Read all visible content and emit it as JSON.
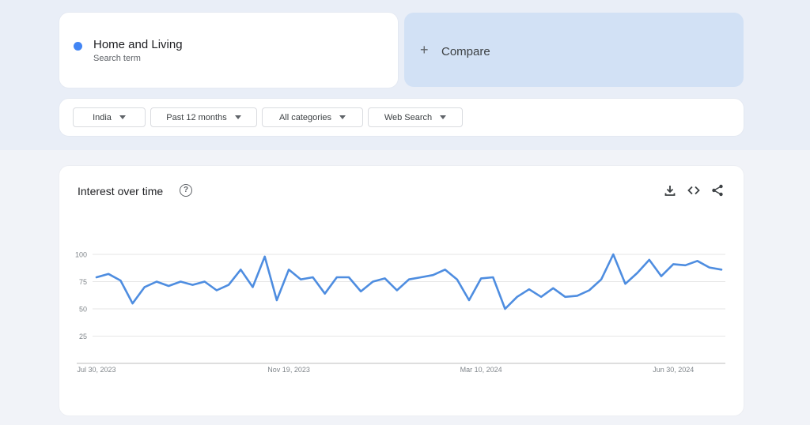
{
  "term": {
    "name": "Home and Living",
    "subtitle": "Search term",
    "color": "#4285f4"
  },
  "compare": {
    "label": "Compare"
  },
  "filters": {
    "region": "India",
    "period": "Past 12 months",
    "category": "All categories",
    "source": "Web Search"
  },
  "chart_section": {
    "title": "Interest over time"
  },
  "icons": [
    "help-icon",
    "download-icon",
    "embed-icon",
    "share-icon",
    "caret-down-icon",
    "plus-icon"
  ],
  "chart_data": {
    "type": "line",
    "title": "Interest over time",
    "xlabel": "",
    "ylabel": "",
    "ylim": [
      0,
      100
    ],
    "yticks": [
      25,
      50,
      75,
      100
    ],
    "grid": true,
    "x_tick_labels": [
      "Jul 30, 2023",
      "Nov 19, 2023",
      "Mar 10, 2024",
      "Jun 30, 2024"
    ],
    "x_tick_index": [
      0,
      16,
      32,
      48
    ],
    "series": [
      {
        "color": "#4e8de0",
        "values": [
          79,
          82,
          76,
          55,
          70,
          75,
          71,
          75,
          72,
          75,
          67,
          72,
          86,
          70,
          98,
          58,
          86,
          77,
          79,
          64,
          79,
          79,
          66,
          75,
          78,
          67,
          77,
          79,
          81,
          86,
          77,
          58,
          78,
          79,
          50,
          61,
          68,
          61,
          69,
          61,
          62,
          67,
          77,
          100,
          73,
          83,
          95,
          80,
          91,
          90,
          94,
          88,
          86
        ]
      }
    ]
  }
}
